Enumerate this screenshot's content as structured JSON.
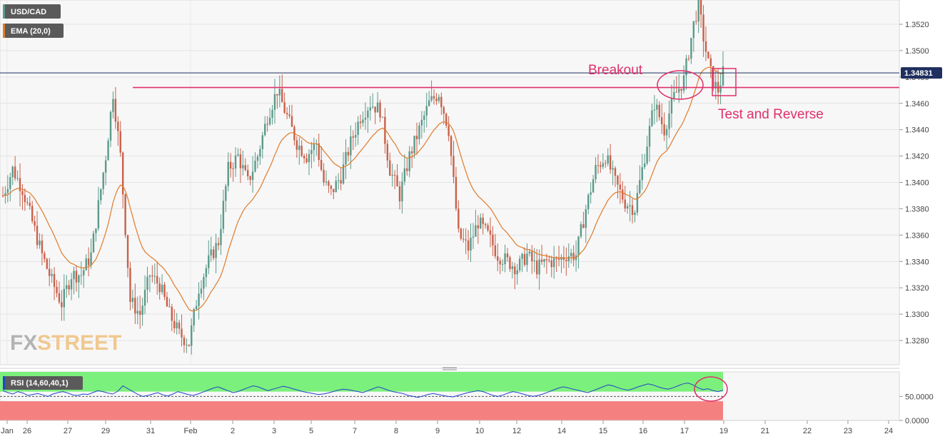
{
  "legend": {
    "symbol": "USD/CAD",
    "ema_label": "EMA (20,0)",
    "rsi_label": "RSI (14,60,40,1)"
  },
  "logo": {
    "part1": "FX",
    "part2": "STREET"
  },
  "current_price": "1.34831",
  "annotations": {
    "breakout": "Breakout",
    "test_reverse": "Test and Reverse"
  },
  "colors": {
    "up": "#5a9a8a",
    "down": "#c9604a",
    "ema": "#e07a2a",
    "resistance": "#e0306a",
    "price_line": "#1f2f5f",
    "rsi_line": "#2244cc",
    "rsi_overbought": "#7cf07c",
    "rsi_oversold": "#f58080"
  },
  "chart_data": [
    {
      "type": "candlestick",
      "title": "USD/CAD",
      "y_ticks": [
        "1.3280",
        "1.3300",
        "1.3320",
        "1.3340",
        "1.3360",
        "1.3380",
        "1.3400",
        "1.3420",
        "1.3440",
        "1.3460",
        "1.3480",
        "1.3500",
        "1.3520"
      ],
      "ylim": [
        1.326,
        1.3535
      ],
      "x_ticks": [
        "Jan",
        "26",
        "27",
        "29",
        "31",
        "Feb",
        "2",
        "3",
        "5",
        "7",
        "8",
        "9",
        "10",
        "12",
        "14",
        "15",
        "16",
        "17",
        "19",
        "21",
        "22",
        "23",
        "24"
      ],
      "last_price": 1.34831,
      "resistance_level": 1.3472,
      "grid": true,
      "series": [
        {
          "name": "EMA (20,0)",
          "type": "line"
        }
      ],
      "anchors": [
        [
          0,
          1.339
        ],
        [
          4,
          1.341
        ],
        [
          8,
          1.3395
        ],
        [
          12,
          1.337
        ],
        [
          16,
          1.3345
        ],
        [
          20,
          1.3325
        ],
        [
          24,
          1.3308
        ],
        [
          28,
          1.333
        ],
        [
          32,
          1.333
        ],
        [
          36,
          1.3345
        ],
        [
          42,
          1.342
        ],
        [
          45,
          1.3468
        ],
        [
          48,
          1.342
        ],
        [
          52,
          1.331
        ],
        [
          56,
          1.33
        ],
        [
          60,
          1.333
        ],
        [
          64,
          1.3322
        ],
        [
          68,
          1.33
        ],
        [
          72,
          1.3285
        ],
        [
          76,
          1.3278
        ],
        [
          80,
          1.332
        ],
        [
          84,
          1.334
        ],
        [
          88,
          1.3355
        ],
        [
          92,
          1.341
        ],
        [
          96,
          1.342
        ],
        [
          100,
          1.34
        ],
        [
          104,
          1.342
        ],
        [
          108,
          1.345
        ],
        [
          112,
          1.347
        ],
        [
          116,
          1.345
        ],
        [
          120,
          1.343
        ],
        [
          124,
          1.342
        ],
        [
          128,
          1.343
        ],
        [
          131,
          1.34
        ],
        [
          134,
          1.3392
        ],
        [
          138,
          1.3405
        ],
        [
          142,
          1.343
        ],
        [
          146,
          1.345
        ],
        [
          150,
          1.346
        ],
        [
          154,
          1.3455
        ],
        [
          158,
          1.341
        ],
        [
          162,
          1.339
        ],
        [
          166,
          1.342
        ],
        [
          170,
          1.344
        ],
        [
          174,
          1.346
        ],
        [
          178,
          1.3468
        ],
        [
          182,
          1.344
        ],
        [
          186,
          1.336
        ],
        [
          190,
          1.335
        ],
        [
          194,
          1.337
        ],
        [
          198,
          1.336
        ],
        [
          202,
          1.3345
        ],
        [
          206,
          1.334
        ],
        [
          210,
          1.3335
        ],
        [
          214,
          1.3345
        ],
        [
          218,
          1.3335
        ],
        [
          222,
          1.334
        ],
        [
          226,
          1.334
        ],
        [
          230,
          1.3345
        ],
        [
          234,
          1.3345
        ],
        [
          238,
          1.338
        ],
        [
          242,
          1.341
        ],
        [
          246,
          1.342
        ],
        [
          250,
          1.34
        ],
        [
          254,
          1.3385
        ],
        [
          258,
          1.338
        ],
        [
          262,
          1.342
        ],
        [
          266,
          1.346
        ],
        [
          270,
          1.344
        ],
        [
          274,
          1.3465
        ],
        [
          278,
          1.3478
        ],
        [
          282,
          1.352
        ],
        [
          284,
          1.3535
        ],
        [
          286,
          1.351
        ],
        [
          288,
          1.349
        ],
        [
          290,
          1.3476
        ],
        [
          292,
          1.347
        ],
        [
          294,
          1.3483
        ]
      ]
    },
    {
      "type": "line",
      "title": "RSI (14,60,40,1)",
      "y_ticks": [
        "0.0000",
        "50.0000"
      ],
      "ylim": [
        0,
        100
      ],
      "levels": [
        60,
        40
      ],
      "series": [
        {
          "name": "RSI (14,60,40,1)",
          "values": [
            62,
            58,
            55,
            60,
            57,
            52,
            54,
            56,
            53,
            50,
            55,
            58,
            60,
            57,
            53,
            52,
            55,
            54,
            58,
            62,
            60,
            57,
            55,
            61,
            72,
            66,
            60,
            54,
            50,
            52,
            55,
            58,
            53,
            51,
            55,
            60,
            57,
            54,
            52,
            55,
            59,
            63,
            67,
            70,
            66,
            62,
            58,
            60,
            64,
            68,
            72,
            70,
            66,
            62,
            65,
            68,
            71,
            69,
            66,
            63,
            60,
            58,
            56,
            54,
            55,
            57,
            60,
            63,
            65,
            64,
            62,
            60,
            58,
            62,
            66,
            70,
            67,
            63,
            60,
            58,
            56,
            52,
            50,
            48,
            51,
            54,
            56,
            54,
            52,
            50,
            49,
            52,
            55,
            58,
            60,
            62,
            60,
            56,
            52,
            50,
            53,
            57,
            60,
            58,
            55,
            52,
            50,
            52,
            55,
            59,
            63,
            67,
            70,
            68,
            65,
            63,
            60,
            58,
            62,
            66,
            70,
            74,
            72,
            68,
            65,
            63,
            66,
            70,
            73,
            76,
            74,
            70,
            67,
            65,
            68,
            72,
            76,
            78,
            74,
            68,
            64,
            66,
            62,
            60,
            63
          ]
        }
      ]
    }
  ]
}
